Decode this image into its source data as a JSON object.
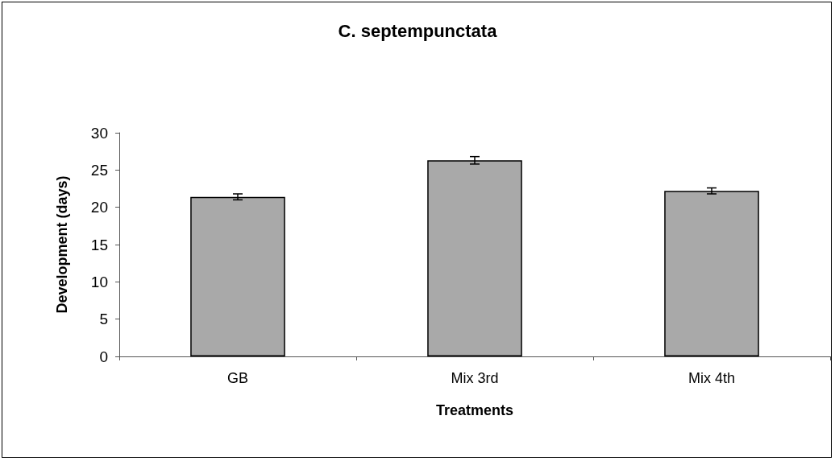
{
  "chart_data": {
    "type": "bar",
    "title": "C. septempunctata",
    "xlabel": "Treatments",
    "ylabel": "Development (days)",
    "categories": [
      "GB",
      "Mix 3rd",
      "Mix 4th"
    ],
    "values": [
      21.4,
      26.3,
      22.2
    ],
    "errors": [
      0.4,
      0.5,
      0.4
    ],
    "color": "#a9a9a9",
    "ylim": [
      0,
      30
    ],
    "yticks": [
      0,
      5,
      10,
      15,
      20,
      25,
      30
    ],
    "grid": false
  }
}
